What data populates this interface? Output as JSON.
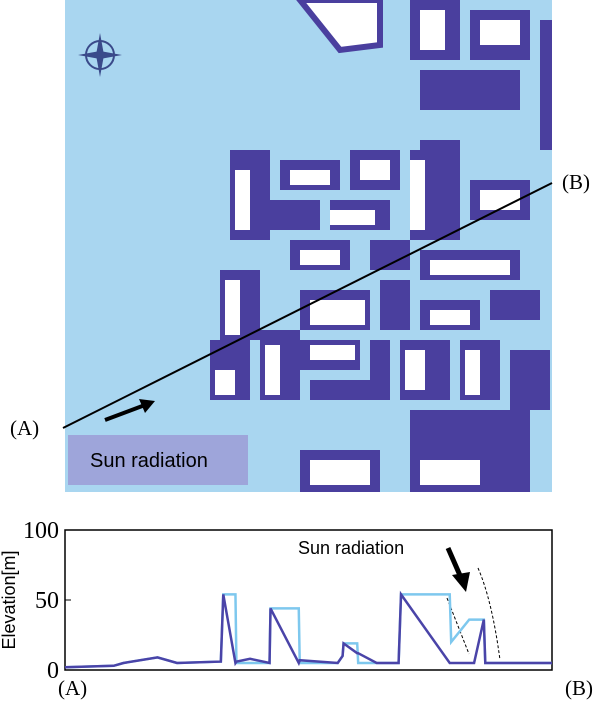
{
  "map": {
    "label_a": "(A)",
    "label_b": "(B)",
    "legend": "Sun radiation"
  },
  "chart_data": {
    "type": "line",
    "ylabel": "Elevation[m]",
    "annotation": "Sun radiation",
    "x_start_label": "(A)",
    "x_end_label": "(B)",
    "xlim": [
      0,
      100
    ],
    "ylim": [
      0,
      100
    ],
    "yticks": [
      0,
      50,
      100
    ],
    "x": [
      0,
      10,
      12,
      19,
      23,
      32,
      32.5,
      35,
      35.2,
      38,
      42,
      42.2,
      48,
      48.2,
      56,
      57,
      57.2,
      60,
      60.2,
      64,
      68.5,
      69,
      79,
      79.3,
      83,
      83.3,
      84,
      86,
      86.3,
      89,
      89.3,
      100
    ],
    "series": [
      {
        "color": "#7ec8ee",
        "values": [
          2,
          3,
          5,
          9,
          5,
          6,
          54,
          54,
          5,
          5,
          5,
          44,
          44,
          5,
          5,
          10,
          19,
          19,
          5,
          5,
          5,
          54,
          54,
          20,
          36,
          36,
          36,
          36,
          5,
          5,
          5,
          5
        ]
      },
      {
        "color": "#4a44a8",
        "values": [
          2,
          3,
          5,
          9,
          5,
          6,
          54,
          5,
          6,
          8,
          5,
          44,
          5,
          7,
          5,
          10,
          19,
          12,
          12,
          5,
          5,
          54,
          5,
          5,
          5,
          5,
          5,
          36,
          5,
          5,
          5,
          5
        ]
      }
    ]
  }
}
